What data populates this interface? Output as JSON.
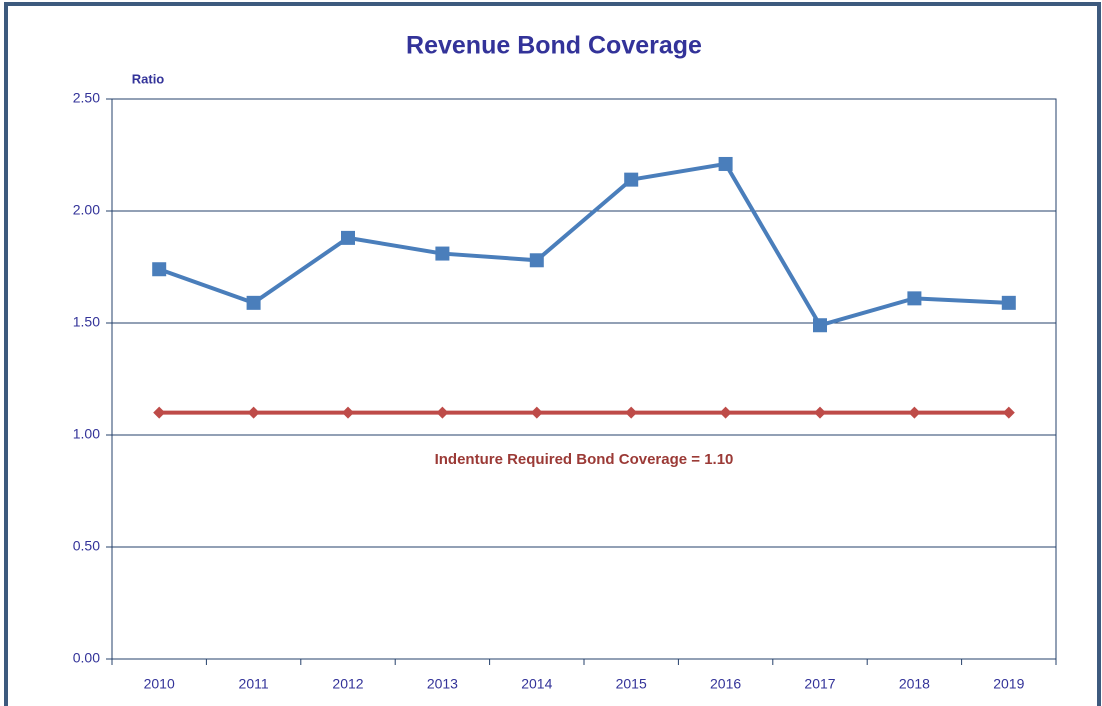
{
  "chart_data": {
    "type": "line",
    "title": "Revenue Bond Coverage",
    "y_label": "Ratio",
    "annotation": "Indenture Required Bond Coverage = 1.10",
    "categories": [
      "2010",
      "2011",
      "2012",
      "2013",
      "2014",
      "2015",
      "2016",
      "2017",
      "2018",
      "2019"
    ],
    "series": [
      {
        "color": "#4a7ebb",
        "marker": "square",
        "values": [
          1.74,
          1.59,
          1.88,
          1.81,
          1.78,
          2.14,
          2.21,
          1.49,
          1.61,
          1.59
        ]
      },
      {
        "color": "#be4b48",
        "marker": "diamond",
        "values": [
          1.1,
          1.1,
          1.1,
          1.1,
          1.1,
          1.1,
          1.1,
          1.1,
          1.1,
          1.1
        ]
      }
    ],
    "ylim": [
      0,
      2.5
    ],
    "yticks": [
      {
        "value": 0,
        "label": "0.00"
      },
      {
        "value": 0.5,
        "label": "0.50"
      },
      {
        "value": 1,
        "label": "1.00"
      },
      {
        "value": 1.5,
        "label": "1.50"
      },
      {
        "value": 2,
        "label": "2.00"
      },
      {
        "value": 2.5,
        "label": "2.50"
      }
    ],
    "grid": true
  }
}
